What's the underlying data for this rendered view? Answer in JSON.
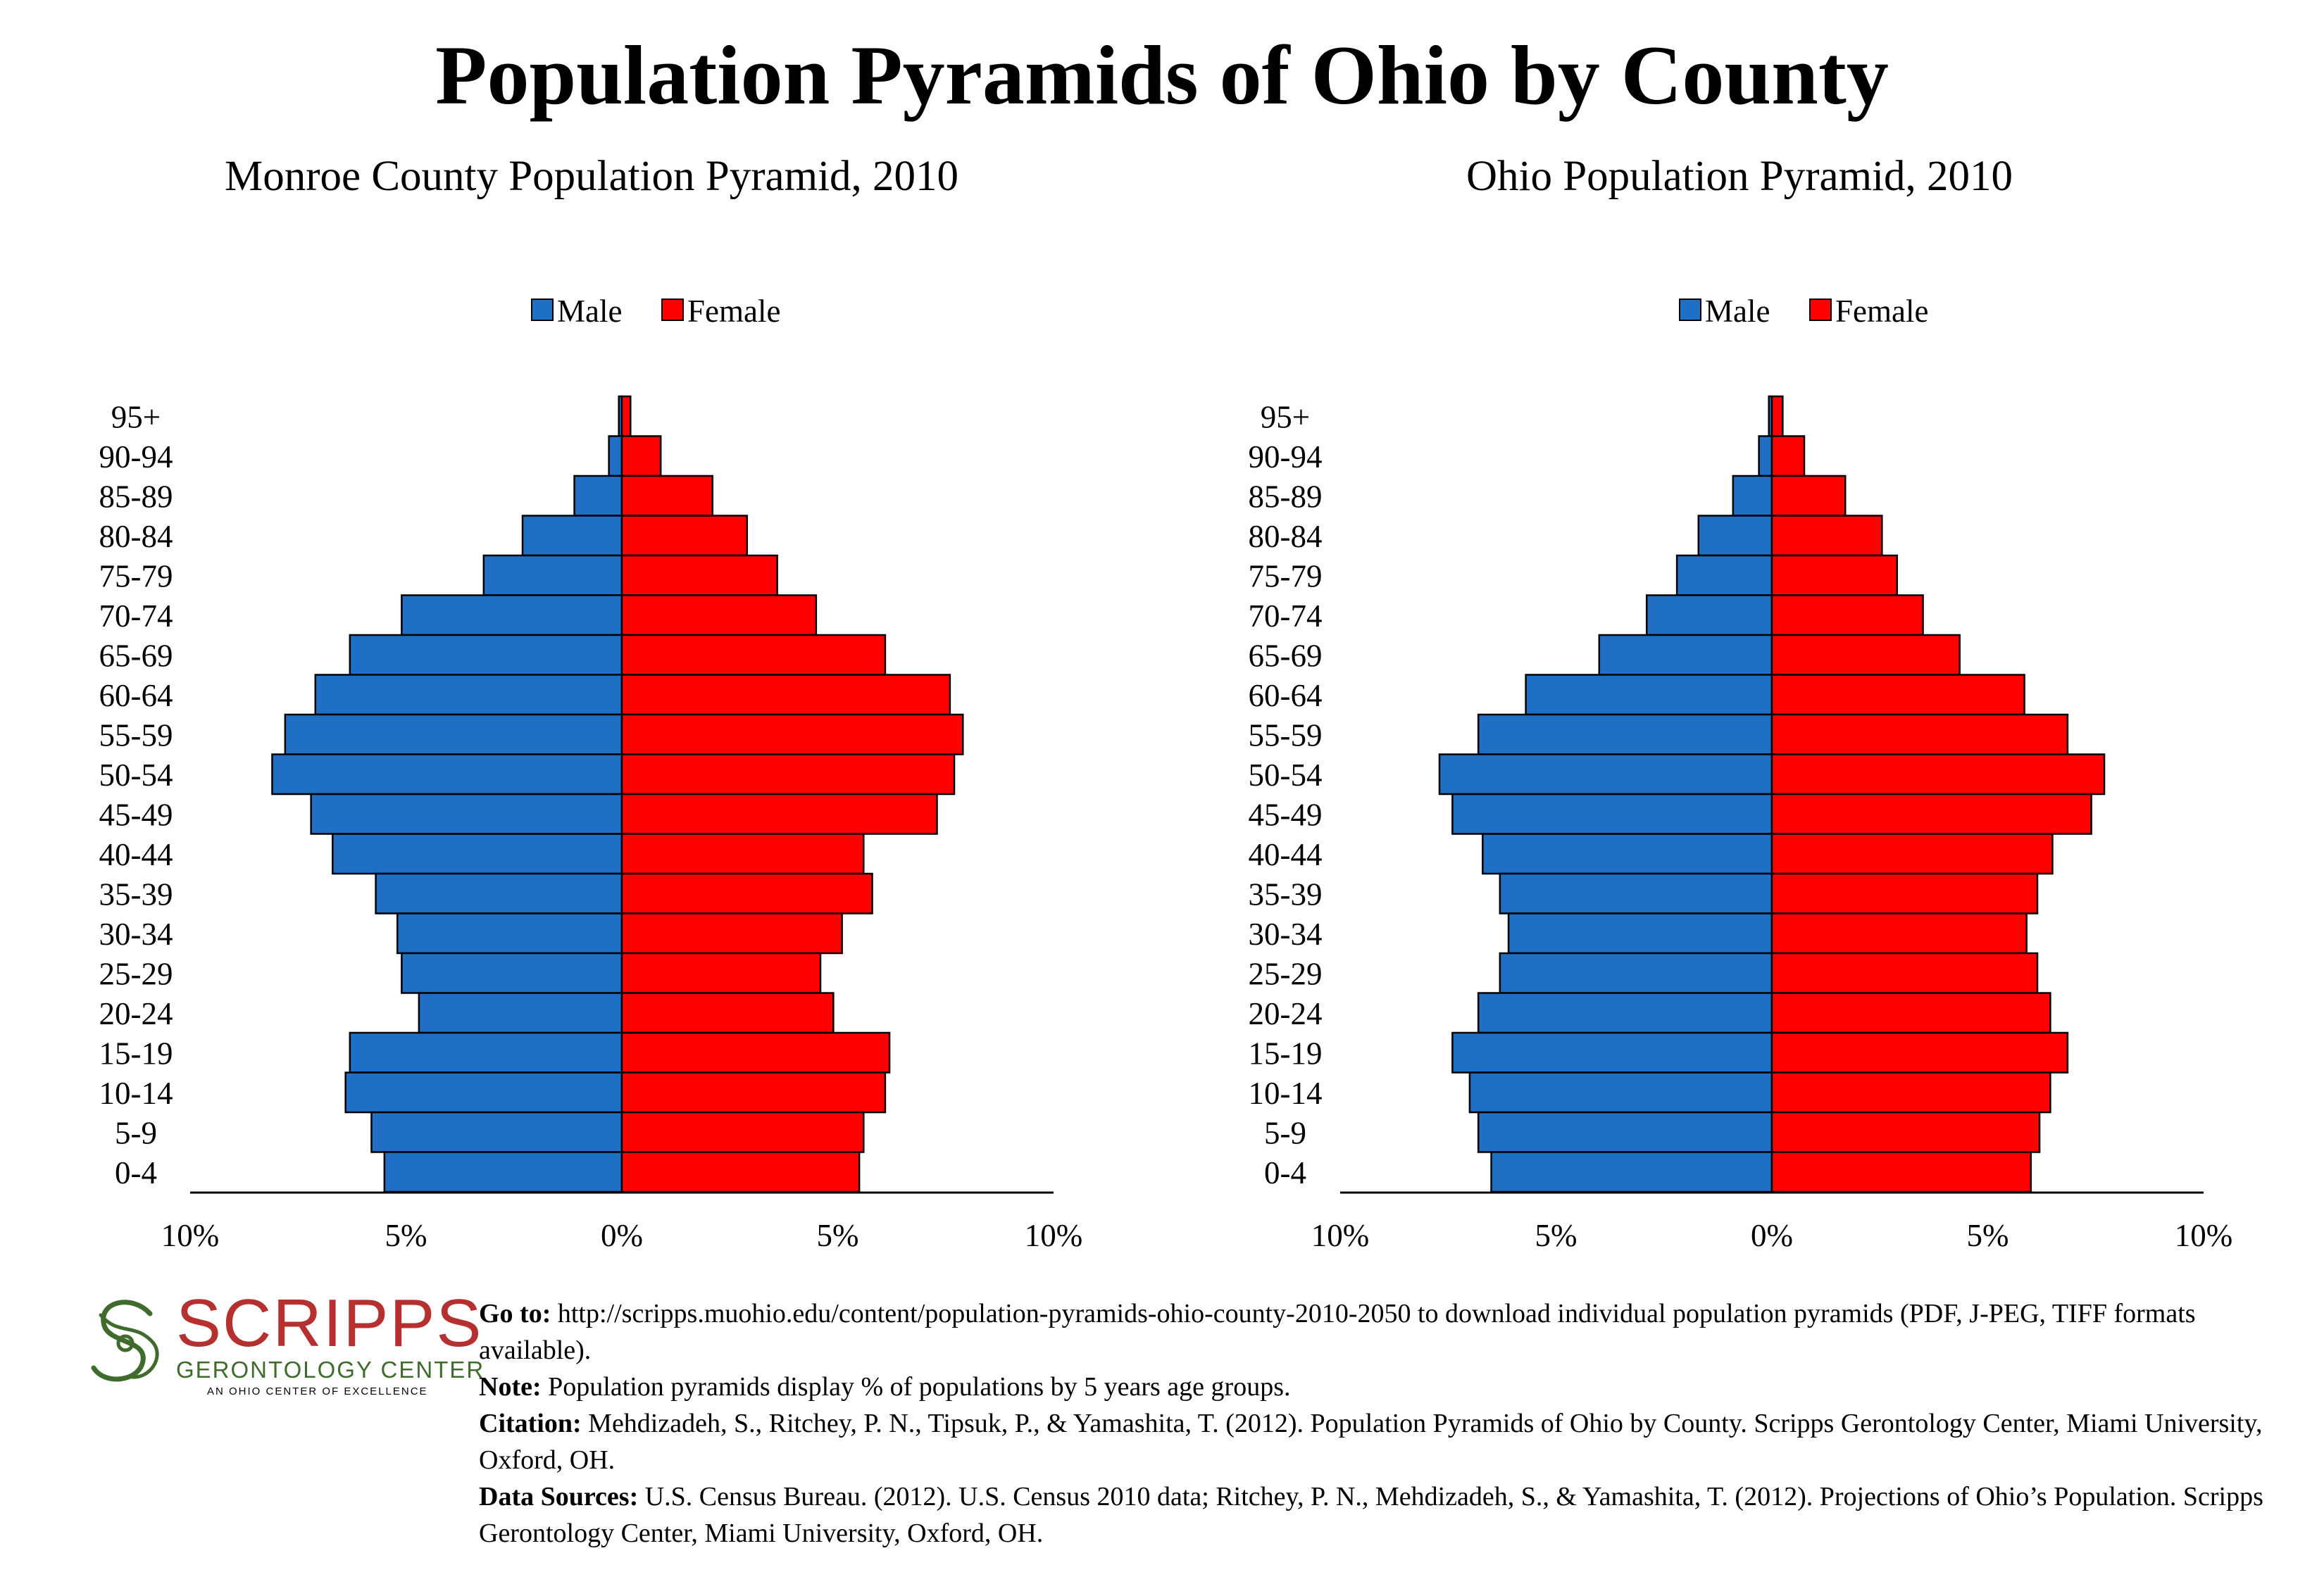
{
  "title": "Population Pyramids of Ohio by County",
  "chart_data": [
    {
      "type": "bar",
      "orientation": "population-pyramid",
      "title": "Monroe County Population Pyramid, 2010",
      "categories": [
        "95+",
        "90-94",
        "85-89",
        "80-84",
        "75-79",
        "70-74",
        "65-69",
        "60-64",
        "55-59",
        "50-54",
        "45-49",
        "40-44",
        "35-39",
        "30-34",
        "25-29",
        "20-24",
        "15-19",
        "10-14",
        "5-9",
        "0-4"
      ],
      "series": [
        {
          "name": "Male",
          "color": "#1f6fc4",
          "values": [
            0.07,
            0.3,
            1.1,
            2.3,
            3.2,
            5.1,
            6.3,
            7.1,
            7.8,
            8.1,
            7.2,
            6.7,
            5.7,
            5.2,
            5.1,
            4.7,
            6.3,
            6.4,
            5.8,
            5.5
          ]
        },
        {
          "name": "Female",
          "color": "#ff0000",
          "values": [
            0.2,
            0.9,
            2.1,
            2.9,
            3.6,
            4.5,
            6.1,
            7.6,
            7.9,
            7.7,
            7.3,
            5.6,
            5.8,
            5.1,
            4.6,
            4.9,
            6.2,
            6.1,
            5.6,
            5.5
          ]
        }
      ],
      "axis": {
        "ticks": [
          -10,
          -5,
          0,
          5,
          10
        ],
        "tick_labels": [
          "10%",
          "5%",
          "0%",
          "5%",
          "10%"
        ],
        "xlim": [
          -10,
          10
        ]
      },
      "legend": "top-center",
      "grid": false
    },
    {
      "type": "bar",
      "orientation": "population-pyramid",
      "title": "Ohio Population Pyramid, 2010",
      "categories": [
        "95+",
        "90-94",
        "85-89",
        "80-84",
        "75-79",
        "70-74",
        "65-69",
        "60-64",
        "55-59",
        "50-54",
        "45-49",
        "40-44",
        "35-39",
        "30-34",
        "25-29",
        "20-24",
        "15-19",
        "10-14",
        "5-9",
        "0-4"
      ],
      "series": [
        {
          "name": "Male",
          "color": "#1f6fc4",
          "values": [
            0.07,
            0.3,
            0.9,
            1.7,
            2.2,
            2.9,
            4.0,
            5.7,
            6.8,
            7.7,
            7.4,
            6.7,
            6.3,
            6.1,
            6.3,
            6.8,
            7.4,
            7.0,
            6.8,
            6.5
          ]
        },
        {
          "name": "Female",
          "color": "#ff0000",
          "values": [
            0.25,
            0.75,
            1.7,
            2.55,
            2.9,
            3.5,
            4.35,
            5.85,
            6.85,
            7.7,
            7.4,
            6.5,
            6.15,
            5.9,
            6.15,
            6.45,
            6.85,
            6.45,
            6.2,
            6.0
          ]
        }
      ],
      "axis": {
        "ticks": [
          -10,
          -5,
          0,
          5,
          10
        ],
        "tick_labels": [
          "10%",
          "5%",
          "0%",
          "5%",
          "10%"
        ],
        "xlim": [
          -10,
          10
        ]
      },
      "legend": "top-center",
      "grid": false
    }
  ],
  "logo": {
    "word": "SCRIPPS",
    "sub": "GERONTOLOGY CENTER",
    "tag": "AN OHIO CENTER OF EXCELLENCE",
    "colors": {
      "red": "#b5302f",
      "green": "#3f6b2c"
    }
  },
  "footnotes": [
    {
      "label": "Go to:",
      "text": " http://scripps.muohio.edu/content/population-pyramids-ohio-county-2010-2050 to download individual population pyramids (PDF, J-PEG, TIFF formats available)."
    },
    {
      "label": "Note:",
      "text": " Population pyramids display % of populations by 5 years age groups."
    },
    {
      "label": "Citation:",
      "text": " Mehdizadeh, S., Ritchey, P. N., Tipsuk, P., & Yamashita, T. (2012). Population Pyramids of Ohio by County. Scripps Gerontology Center, Miami University, Oxford, OH."
    },
    {
      "label": "Data Sources:",
      "text": " U.S. Census Bureau. (2012). U.S. Census 2010 data; Ritchey, P. N., Mehdizadeh, S., & Yamashita, T. (2012). Projections of Ohio’s Population. Scripps Gerontology Center, Miami University, Oxford, OH."
    }
  ]
}
